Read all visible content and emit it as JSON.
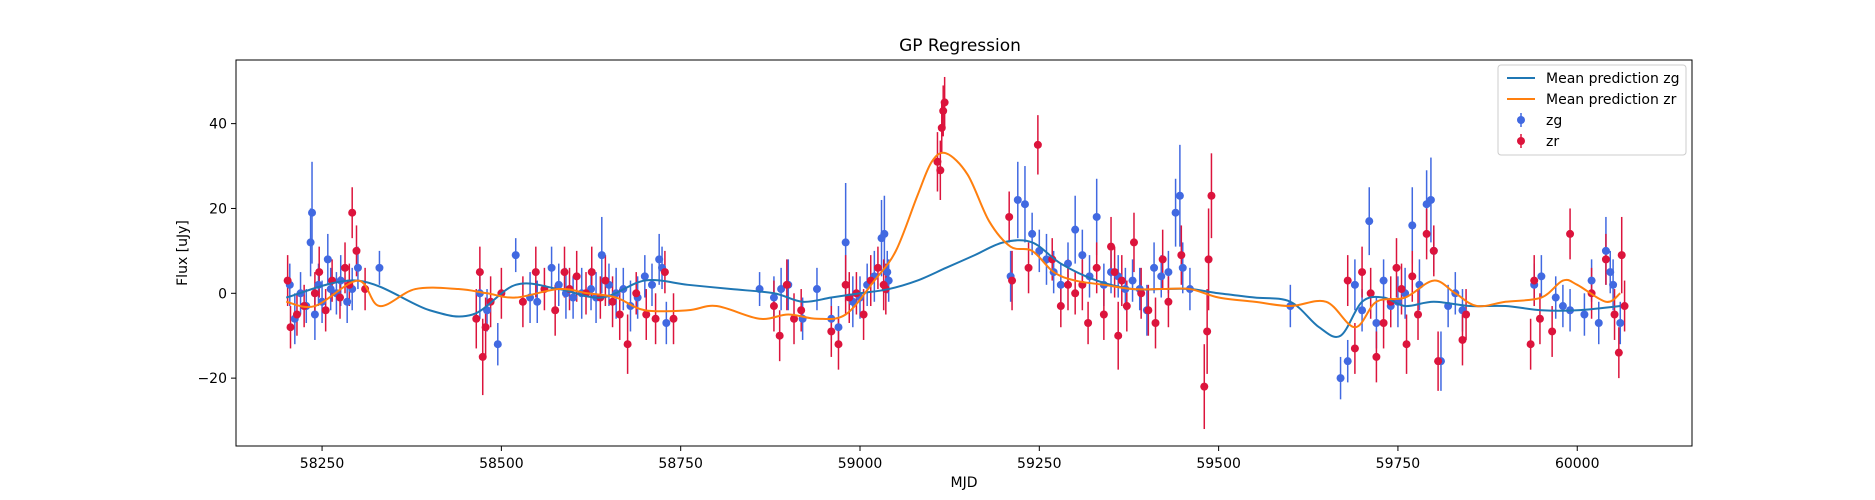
{
  "chart_data": {
    "type": "scatter",
    "title": "GP Regression",
    "xlabel": "MJD",
    "ylabel": "Flux [uJy]",
    "xlim": [
      58130,
      60160
    ],
    "ylim": [
      -36,
      55
    ],
    "xticks": [
      58250,
      58500,
      58750,
      59000,
      59250,
      59500,
      59750,
      60000
    ],
    "yticks": [
      -20,
      0,
      20,
      40
    ],
    "grid": false,
    "legend_position": "top-right",
    "colors": {
      "mean_zg": "#1f77b4",
      "mean_zr": "#ff7f0e",
      "points_zg": "#4169e1",
      "points_zr": "#dc143c"
    },
    "lines": [
      {
        "name": "Mean prediction zg",
        "x": [
          58200,
          58300,
          58400,
          58460,
          58520,
          58580,
          58640,
          58700,
          58760,
          58820,
          58880,
          58920,
          58960,
          59000,
          59040,
          59080,
          59120,
          59160,
          59200,
          59240,
          59280,
          59330,
          59380,
          59420,
          59460,
          59500,
          59550,
          59600,
          59640,
          59670,
          59700,
          59730,
          59760,
          59800,
          59850,
          59900,
          59950,
          60000,
          60060
        ],
        "y": [
          -1,
          3,
          -4,
          -5,
          2,
          1,
          -1,
          3,
          2,
          1,
          0,
          -2,
          -1,
          0,
          1,
          3,
          6,
          9,
          12,
          12,
          7,
          3,
          1,
          1,
          1,
          0,
          -1,
          -2,
          -8,
          -10,
          -2,
          -1,
          -3,
          -2,
          -3,
          -3,
          -4,
          -4,
          -3
        ]
      },
      {
        "name": "Mean prediction zr",
        "x": [
          58200,
          58240,
          58300,
          58330,
          58380,
          58440,
          58480,
          58520,
          58580,
          58620,
          58660,
          58700,
          58760,
          58800,
          58860,
          58900,
          58940,
          58980,
          59020,
          59050,
          59080,
          59100,
          59120,
          59150,
          59180,
          59210,
          59240,
          59270,
          59300,
          59340,
          59380,
          59420,
          59460,
          59500,
          59550,
          59600,
          59650,
          59690,
          59720,
          59760,
          59800,
          59830,
          59860,
          59900,
          59950,
          59980,
          60000,
          60040,
          60060
        ],
        "y": [
          -2,
          -3,
          3,
          -3,
          1,
          1,
          0,
          -1,
          1,
          0,
          -1,
          -4,
          -4,
          -3,
          -6,
          -5,
          -6,
          -5,
          3,
          10,
          23,
          31,
          33,
          28,
          17,
          11,
          10,
          5,
          3,
          2,
          1,
          1,
          1,
          -1,
          -2,
          -3,
          -2,
          -8,
          -2,
          -1,
          3,
          0,
          -3,
          -2,
          -1,
          3,
          2,
          -2,
          0
        ]
      }
    ],
    "series": [
      {
        "name": "zg",
        "x": [
          58205,
          58212,
          58220,
          58228,
          58234,
          58236,
          58240,
          58245,
          58250,
          58258,
          58262,
          58270,
          58276,
          58285,
          58292,
          58300,
          58330,
          58470,
          58480,
          58495,
          58520,
          58540,
          58550,
          58570,
          58580,
          58590,
          58600,
          58612,
          58625,
          58632,
          58640,
          58650,
          58660,
          58670,
          58680,
          58690,
          58700,
          58710,
          58720,
          58724,
          58730,
          58860,
          58880,
          58890,
          58900,
          58920,
          58940,
          58960,
          58970,
          58980,
          58990,
          59000,
          59010,
          59020,
          59030,
          59034,
          59038,
          59040,
          59210,
          59220,
          59230,
          59240,
          59250,
          59260,
          59270,
          59280,
          59290,
          59300,
          59310,
          59320,
          59330,
          59340,
          59350,
          59360,
          59370,
          59380,
          59390,
          59400,
          59410,
          59420,
          59430,
          59440,
          59446,
          59450,
          59460,
          59600,
          59670,
          59680,
          59690,
          59700,
          59710,
          59720,
          59730,
          59740,
          59750,
          59760,
          59770,
          59780,
          59790,
          59796,
          59800,
          59810,
          59820,
          59830,
          59840,
          59940,
          59950,
          59970,
          59980,
          59990,
          60010,
          60020,
          60030,
          60040,
          60046,
          60050,
          60060
        ],
        "y": [
          2,
          -6,
          0,
          -3,
          12,
          19,
          -5,
          2,
          -2,
          8,
          1,
          0,
          3,
          -2,
          1,
          6,
          6,
          0,
          -4,
          -12,
          9,
          -1,
          -2,
          6,
          2,
          0,
          -1,
          0,
          1,
          -1,
          9,
          2,
          0,
          1,
          -3,
          -1,
          4,
          2,
          8,
          6,
          -7,
          1,
          -1,
          1,
          2,
          -6,
          1,
          -6,
          -8,
          12,
          -2,
          -1,
          2,
          4,
          13,
          14,
          5,
          3,
          4,
          22,
          21,
          14,
          10,
          8,
          5,
          2,
          7,
          15,
          9,
          4,
          18,
          2,
          5,
          4,
          1,
          3,
          1,
          -4,
          6,
          4,
          5,
          19,
          23,
          6,
          1,
          -3,
          -20,
          -16,
          2,
          -4,
          17,
          -7,
          3,
          -3,
          -2,
          0,
          16,
          2,
          21,
          22,
          10,
          -16,
          -3,
          0,
          -4,
          2,
          4,
          -1,
          -3,
          -4,
          -5,
          3,
          -7,
          10,
          5,
          2,
          -7
        ],
        "yerr": [
          5,
          6,
          5,
          4,
          8,
          12,
          6,
          5,
          5,
          6,
          5,
          5,
          6,
          5,
          5,
          5,
          4,
          6,
          5,
          5,
          4,
          6,
          5,
          5,
          5,
          6,
          5,
          6,
          5,
          6,
          9,
          5,
          6,
          5,
          6,
          5,
          5,
          5,
          6,
          5,
          5,
          4,
          5,
          5,
          6,
          5,
          5,
          5,
          5,
          14,
          6,
          5,
          5,
          6,
          9,
          9,
          5,
          5,
          6,
          9,
          9,
          5,
          5,
          6,
          5,
          5,
          5,
          8,
          6,
          5,
          9,
          5,
          5,
          5,
          5,
          5,
          5,
          6,
          6,
          5,
          5,
          8,
          12,
          6,
          5,
          5,
          5,
          5,
          6,
          5,
          8,
          6,
          5,
          5,
          6,
          6,
          9,
          6,
          8,
          10,
          5,
          7,
          5,
          5,
          5,
          5,
          5,
          5,
          5,
          5,
          5,
          5,
          5,
          8,
          5,
          6,
          5
        ]
      },
      {
        "name": "zr",
        "x": [
          58202,
          58206,
          58215,
          58225,
          58240,
          58246,
          58255,
          58264,
          58275,
          58282,
          58288,
          58292,
          58298,
          58310,
          58465,
          58470,
          58474,
          58478,
          58485,
          58500,
          58530,
          58548,
          58560,
          58575,
          58588,
          58595,
          58605,
          58618,
          58626,
          58638,
          58645,
          58655,
          58665,
          58676,
          58688,
          58702,
          58715,
          58728,
          58740,
          58880,
          58888,
          58898,
          58908,
          58918,
          58960,
          58970,
          58980,
          58985,
          58995,
          59005,
          59015,
          59025,
          59033,
          59036,
          59108,
          59112,
          59114,
          59116,
          59118,
          59208,
          59212,
          59235,
          59248,
          59268,
          59280,
          59290,
          59300,
          59310,
          59318,
          59330,
          59340,
          59350,
          59355,
          59360,
          59365,
          59372,
          59382,
          59392,
          59402,
          59412,
          59422,
          59430,
          59448,
          59480,
          59484,
          59486,
          59490,
          59680,
          59690,
          59700,
          59712,
          59720,
          59730,
          59740,
          59748,
          59755,
          59762,
          59770,
          59778,
          59790,
          59800,
          59806,
          59840,
          59845,
          59935,
          59940,
          59948,
          59965,
          59990,
          60020,
          60040,
          60052,
          60058,
          60062,
          60066
        ],
        "y": [
          3,
          -8,
          -5,
          -3,
          0,
          5,
          -4,
          3,
          -1,
          6,
          2,
          19,
          10,
          1,
          -6,
          5,
          -15,
          -8,
          -2,
          0,
          -2,
          5,
          1,
          -4,
          5,
          1,
          4,
          0,
          5,
          -1,
          3,
          -2,
          -5,
          -12,
          0,
          -5,
          -6,
          5,
          -6,
          -3,
          -10,
          2,
          -6,
          -4,
          -9,
          -12,
          2,
          -1,
          0,
          -5,
          3,
          6,
          2,
          1,
          31,
          29,
          39,
          43,
          45,
          18,
          3,
          6,
          35,
          8,
          -3,
          2,
          0,
          2,
          -7,
          6,
          -5,
          11,
          5,
          -10,
          3,
          -3,
          12,
          0,
          -4,
          -7,
          8,
          -2,
          9,
          -22,
          -9,
          8,
          23,
          3,
          -13,
          5,
          0,
          -15,
          -7,
          -2,
          6,
          1,
          -12,
          4,
          -5,
          14,
          10,
          -16,
          -11,
          -5,
          -12,
          3,
          -6,
          -9,
          14,
          0,
          8,
          -5,
          -14,
          9,
          -3
        ],
        "yerr": [
          6,
          5,
          5,
          5,
          5,
          6,
          5,
          5,
          5,
          6,
          5,
          6,
          6,
          5,
          7,
          6,
          9,
          7,
          6,
          6,
          6,
          6,
          5,
          6,
          6,
          5,
          6,
          5,
          6,
          5,
          6,
          6,
          6,
          7,
          5,
          6,
          6,
          5,
          6,
          6,
          6,
          6,
          6,
          5,
          6,
          6,
          7,
          6,
          5,
          6,
          6,
          5,
          6,
          6,
          7,
          7,
          6,
          6,
          6,
          6,
          7,
          6,
          7,
          5,
          5,
          6,
          5,
          6,
          5,
          6,
          6,
          7,
          6,
          8,
          6,
          6,
          7,
          6,
          6,
          6,
          7,
          6,
          7,
          10,
          10,
          12,
          10,
          6,
          6,
          6,
          6,
          6,
          6,
          6,
          7,
          6,
          7,
          6,
          6,
          6,
          6,
          7,
          6,
          6,
          6,
          6,
          6,
          6,
          6,
          6,
          6,
          6,
          6,
          9,
          6
        ]
      }
    ]
  }
}
